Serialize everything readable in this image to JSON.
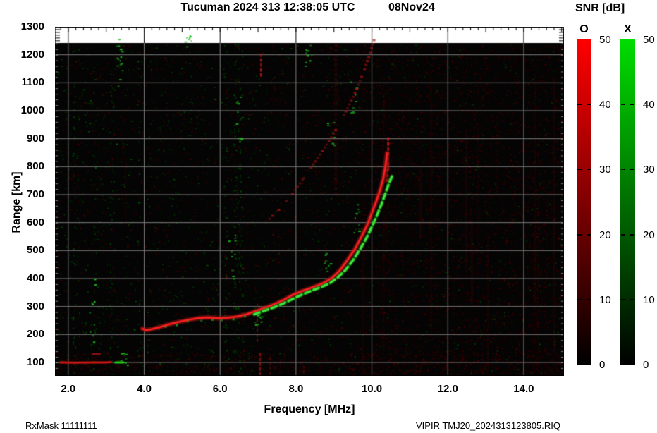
{
  "header": {
    "title": "Tucuman 2024 313 12:38:05 UTC",
    "date": "08Nov24"
  },
  "colorbar_panel": {
    "title": "SNR [dB]",
    "bars": [
      {
        "id": "o",
        "label": "O",
        "top_color": "#ff0000",
        "bottom_color": "#000000"
      },
      {
        "id": "x",
        "label": "X",
        "top_color": "#00dd00",
        "bottom_color": "#000000"
      }
    ],
    "tick_values": [
      50,
      40,
      30,
      20,
      10,
      0
    ],
    "dash_values": [
      40,
      30,
      20,
      10
    ],
    "min": 0,
    "max": 50
  },
  "footer": {
    "left": "RxMask 11111111",
    "right": "VIPIR  TMJ20_2024313123805.RIQ"
  },
  "chart_data": {
    "type": "scatter",
    "title": "Tucuman 2024 313 12:38:05 UTC  08Nov24",
    "xlabel": "Frequency [MHz]",
    "ylabel": "Range [km]",
    "xlim": [
      1.65,
      15.06
    ],
    "ylim": [
      52,
      1300
    ],
    "x_ticks": [
      {
        "v": 2,
        "label": "2.0"
      },
      {
        "v": 4,
        "label": "4.0"
      },
      {
        "v": 6,
        "label": "6.0"
      },
      {
        "v": 8,
        "label": "8.0"
      },
      {
        "v": 10,
        "label": "10.0"
      },
      {
        "v": 12,
        "label": "12.0"
      },
      {
        "v": 14,
        "label": "14.0"
      }
    ],
    "y_ticks": [
      {
        "v": 100,
        "label": "100"
      },
      {
        "v": 200,
        "label": "200"
      },
      {
        "v": 300,
        "label": "300"
      },
      {
        "v": 400,
        "label": "400"
      },
      {
        "v": 500,
        "label": "500"
      },
      {
        "v": 600,
        "label": "600"
      },
      {
        "v": 700,
        "label": "700"
      },
      {
        "v": 800,
        "label": "800"
      },
      {
        "v": 900,
        "label": "900"
      },
      {
        "v": 1000,
        "label": "1000"
      },
      {
        "v": 1100,
        "label": "1100"
      },
      {
        "v": 1200,
        "label": "1200"
      },
      {
        "v": 1300,
        "label": "1300"
      }
    ],
    "x_minor_step": 0.2,
    "grid": true,
    "data_top_km": 1242,
    "colors": {
      "background": "#040404",
      "grid": "#7d7d7d",
      "frame": "#000000",
      "band": "#ffffff",
      "o_trace": "#e01212",
      "o_halo": "rgba(150,22,22,0.55)",
      "x_trace": "#22cc22",
      "x_halo": "rgba(20,120,20,0.45)",
      "hop2": "#8f1d1d",
      "e_trace": "#cf1515"
    },
    "series": [
      {
        "name": "O-mode F trace",
        "color": "#e01212",
        "style": "solid",
        "points": [
          [
            3.95,
            221
          ],
          [
            4.05,
            215
          ],
          [
            4.2,
            219
          ],
          [
            4.45,
            228
          ],
          [
            4.7,
            238
          ],
          [
            4.95,
            246
          ],
          [
            5.2,
            253
          ],
          [
            5.45,
            259
          ],
          [
            5.7,
            261
          ],
          [
            5.95,
            258
          ],
          [
            6.2,
            260
          ],
          [
            6.45,
            264
          ],
          [
            6.7,
            272
          ],
          [
            6.95,
            284
          ],
          [
            7.2,
            296
          ],
          [
            7.45,
            309
          ],
          [
            7.7,
            325
          ],
          [
            7.95,
            344
          ],
          [
            8.2,
            357
          ],
          [
            8.45,
            369
          ],
          [
            8.7,
            382
          ],
          [
            8.95,
            402
          ],
          [
            9.15,
            428
          ],
          [
            9.35,
            465
          ],
          [
            9.55,
            505
          ],
          [
            9.72,
            548
          ],
          [
            9.88,
            592
          ],
          [
            10.0,
            635
          ],
          [
            10.12,
            678
          ],
          [
            10.22,
            718
          ],
          [
            10.3,
            758
          ],
          [
            10.36,
            805
          ],
          [
            10.4,
            848
          ]
        ]
      },
      {
        "name": "X-mode F trace",
        "color": "#22cc22",
        "style": "dashed",
        "points": [
          [
            6.9,
            272
          ],
          [
            7.15,
            284
          ],
          [
            7.4,
            296
          ],
          [
            7.65,
            310
          ],
          [
            7.9,
            326
          ],
          [
            8.15,
            342
          ],
          [
            8.4,
            356
          ],
          [
            8.65,
            369
          ],
          [
            8.9,
            384
          ],
          [
            9.1,
            404
          ],
          [
            9.3,
            430
          ],
          [
            9.5,
            465
          ],
          [
            9.68,
            503
          ],
          [
            9.85,
            543
          ],
          [
            10.0,
            585
          ],
          [
            10.13,
            625
          ],
          [
            10.25,
            665
          ],
          [
            10.35,
            702
          ],
          [
            10.45,
            740
          ],
          [
            10.55,
            772
          ]
        ]
      },
      {
        "name": "X-mode sparse echoes",
        "color": "#1faf1f",
        "style": "dots",
        "points": [
          [
            4.55,
            229
          ],
          [
            4.85,
            240
          ],
          [
            5.15,
            250
          ],
          [
            5.45,
            257
          ],
          [
            5.75,
            260
          ],
          [
            6.05,
            258
          ],
          [
            6.35,
            262
          ],
          [
            6.65,
            269
          ]
        ]
      },
      {
        "name": "second-hop F trace",
        "color": "#8f1d1d",
        "style": "dotted",
        "points": [
          [
            7.3,
            615
          ],
          [
            7.6,
            655
          ],
          [
            7.9,
            705
          ],
          [
            8.2,
            760
          ],
          [
            8.5,
            820
          ],
          [
            8.8,
            880
          ],
          [
            9.1,
            945
          ],
          [
            9.35,
            1010
          ],
          [
            9.6,
            1080
          ],
          [
            9.8,
            1150
          ],
          [
            9.95,
            1210
          ],
          [
            10.05,
            1255
          ]
        ]
      },
      {
        "name": "E-region echo O",
        "color": "#cf1515",
        "style": "solid",
        "points": [
          [
            1.78,
            100
          ],
          [
            2.2,
            99
          ],
          [
            2.6,
            100
          ],
          [
            3.0,
            100
          ],
          [
            3.12,
            101
          ]
        ]
      },
      {
        "name": "E-region echo X blip",
        "color": "#22cc22",
        "style": "solid",
        "points": [
          [
            3.24,
            100
          ],
          [
            3.46,
            100
          ]
        ]
      },
      {
        "name": "E-region upper dash",
        "color": "#b01414",
        "style": "solid",
        "points": [
          [
            2.64,
            130
          ],
          [
            2.84,
            130
          ]
        ]
      }
    ],
    "interference_streaks": [
      {
        "f": 6.98,
        "range": [
          185,
          310
        ],
        "w": 2,
        "alpha": 0.5
      },
      {
        "f": 7.08,
        "range": [
          1120,
          1205
        ],
        "w": 3,
        "alpha": 0.6
      },
      {
        "f": 7.05,
        "range": [
          55,
          135
        ],
        "w": 3,
        "alpha": 0.5
      },
      {
        "f": 7.32,
        "range": [
          60,
          120
        ],
        "w": 2,
        "alpha": 0.3
      },
      {
        "f": 9.05,
        "range": [
          700,
          1240
        ],
        "w": 5,
        "alpha": 0.1
      },
      {
        "f": 10.43,
        "range": [
          795,
          905
        ],
        "w": 3,
        "alpha": 0.8
      },
      {
        "f": 10.41,
        "range": [
          755,
          845
        ],
        "w": 3,
        "alpha": 0.65
      },
      {
        "f": 8.2,
        "range": [
          30,
          90
        ],
        "w": 2,
        "alpha": 0.25
      }
    ],
    "green_clusters": [
      {
        "f": 3.35,
        "range": [
          1080,
          1260
        ],
        "n": 16
      },
      {
        "f": 2.6,
        "range": [
          150,
          420
        ],
        "n": 10
      },
      {
        "f": 6.5,
        "range": [
          880,
          1060
        ],
        "n": 12
      },
      {
        "f": 6.3,
        "range": [
          400,
          560
        ],
        "n": 10
      },
      {
        "f": 7.0,
        "range": [
          235,
          285
        ],
        "n": 14
      },
      {
        "f": 3.45,
        "range": [
          85,
          135
        ],
        "n": 8
      },
      {
        "f": 8.3,
        "range": [
          1150,
          1260
        ],
        "n": 10
      },
      {
        "f": 5.15,
        "range": [
          1210,
          1270
        ],
        "n": 8
      },
      {
        "f": 9.6,
        "range": [
          560,
          700
        ],
        "n": 10
      },
      {
        "f": 8.9,
        "range": [
          860,
          960
        ],
        "n": 8
      },
      {
        "f": 9.5,
        "range": [
          990,
          1120
        ],
        "n": 8
      },
      {
        "f": 8.8,
        "range": [
          420,
          520
        ],
        "n": 8
      }
    ],
    "noise": {
      "seed": 20241108,
      "base_count": 6000,
      "right_haze_count": 2600,
      "bottom_band_count": 1000,
      "red_column_count": 16,
      "green_column_count": 12
    }
  }
}
